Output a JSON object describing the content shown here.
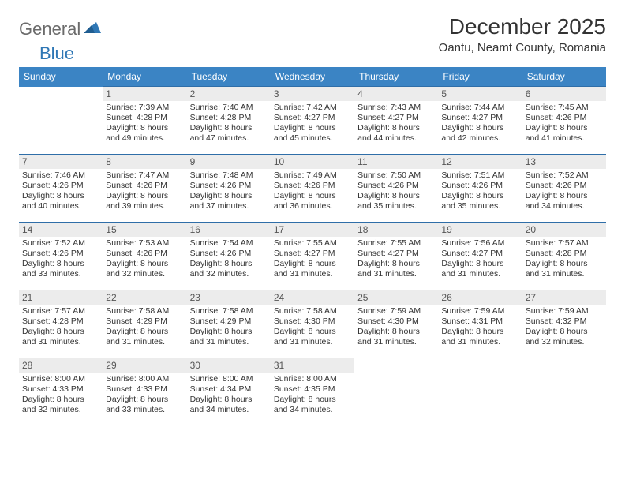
{
  "brand": {
    "part1": "General",
    "part2": "Blue"
  },
  "title": "December 2025",
  "location": "Oantu, Neamt County, Romania",
  "colors": {
    "header_bg": "#3b84c4",
    "header_text": "#ffffff",
    "daynum_bg": "#ececec",
    "row_border": "#2f6ea8",
    "brand_gray": "#6b6b6b",
    "brand_blue": "#2f77b5"
  },
  "day_headers": [
    "Sunday",
    "Monday",
    "Tuesday",
    "Wednesday",
    "Thursday",
    "Friday",
    "Saturday"
  ],
  "weeks": [
    [
      {
        "num": "",
        "sun": "",
        "set": "",
        "dl": ""
      },
      {
        "num": "1",
        "sun": "Sunrise: 7:39 AM",
        "set": "Sunset: 4:28 PM",
        "dl": "Daylight: 8 hours and 49 minutes."
      },
      {
        "num": "2",
        "sun": "Sunrise: 7:40 AM",
        "set": "Sunset: 4:28 PM",
        "dl": "Daylight: 8 hours and 47 minutes."
      },
      {
        "num": "3",
        "sun": "Sunrise: 7:42 AM",
        "set": "Sunset: 4:27 PM",
        "dl": "Daylight: 8 hours and 45 minutes."
      },
      {
        "num": "4",
        "sun": "Sunrise: 7:43 AM",
        "set": "Sunset: 4:27 PM",
        "dl": "Daylight: 8 hours and 44 minutes."
      },
      {
        "num": "5",
        "sun": "Sunrise: 7:44 AM",
        "set": "Sunset: 4:27 PM",
        "dl": "Daylight: 8 hours and 42 minutes."
      },
      {
        "num": "6",
        "sun": "Sunrise: 7:45 AM",
        "set": "Sunset: 4:26 PM",
        "dl": "Daylight: 8 hours and 41 minutes."
      }
    ],
    [
      {
        "num": "7",
        "sun": "Sunrise: 7:46 AM",
        "set": "Sunset: 4:26 PM",
        "dl": "Daylight: 8 hours and 40 minutes."
      },
      {
        "num": "8",
        "sun": "Sunrise: 7:47 AM",
        "set": "Sunset: 4:26 PM",
        "dl": "Daylight: 8 hours and 39 minutes."
      },
      {
        "num": "9",
        "sun": "Sunrise: 7:48 AM",
        "set": "Sunset: 4:26 PM",
        "dl": "Daylight: 8 hours and 37 minutes."
      },
      {
        "num": "10",
        "sun": "Sunrise: 7:49 AM",
        "set": "Sunset: 4:26 PM",
        "dl": "Daylight: 8 hours and 36 minutes."
      },
      {
        "num": "11",
        "sun": "Sunrise: 7:50 AM",
        "set": "Sunset: 4:26 PM",
        "dl": "Daylight: 8 hours and 35 minutes."
      },
      {
        "num": "12",
        "sun": "Sunrise: 7:51 AM",
        "set": "Sunset: 4:26 PM",
        "dl": "Daylight: 8 hours and 35 minutes."
      },
      {
        "num": "13",
        "sun": "Sunrise: 7:52 AM",
        "set": "Sunset: 4:26 PM",
        "dl": "Daylight: 8 hours and 34 minutes."
      }
    ],
    [
      {
        "num": "14",
        "sun": "Sunrise: 7:52 AM",
        "set": "Sunset: 4:26 PM",
        "dl": "Daylight: 8 hours and 33 minutes."
      },
      {
        "num": "15",
        "sun": "Sunrise: 7:53 AM",
        "set": "Sunset: 4:26 PM",
        "dl": "Daylight: 8 hours and 32 minutes."
      },
      {
        "num": "16",
        "sun": "Sunrise: 7:54 AM",
        "set": "Sunset: 4:26 PM",
        "dl": "Daylight: 8 hours and 32 minutes."
      },
      {
        "num": "17",
        "sun": "Sunrise: 7:55 AM",
        "set": "Sunset: 4:27 PM",
        "dl": "Daylight: 8 hours and 31 minutes."
      },
      {
        "num": "18",
        "sun": "Sunrise: 7:55 AM",
        "set": "Sunset: 4:27 PM",
        "dl": "Daylight: 8 hours and 31 minutes."
      },
      {
        "num": "19",
        "sun": "Sunrise: 7:56 AM",
        "set": "Sunset: 4:27 PM",
        "dl": "Daylight: 8 hours and 31 minutes."
      },
      {
        "num": "20",
        "sun": "Sunrise: 7:57 AM",
        "set": "Sunset: 4:28 PM",
        "dl": "Daylight: 8 hours and 31 minutes."
      }
    ],
    [
      {
        "num": "21",
        "sun": "Sunrise: 7:57 AM",
        "set": "Sunset: 4:28 PM",
        "dl": "Daylight: 8 hours and 31 minutes."
      },
      {
        "num": "22",
        "sun": "Sunrise: 7:58 AM",
        "set": "Sunset: 4:29 PM",
        "dl": "Daylight: 8 hours and 31 minutes."
      },
      {
        "num": "23",
        "sun": "Sunrise: 7:58 AM",
        "set": "Sunset: 4:29 PM",
        "dl": "Daylight: 8 hours and 31 minutes."
      },
      {
        "num": "24",
        "sun": "Sunrise: 7:58 AM",
        "set": "Sunset: 4:30 PM",
        "dl": "Daylight: 8 hours and 31 minutes."
      },
      {
        "num": "25",
        "sun": "Sunrise: 7:59 AM",
        "set": "Sunset: 4:30 PM",
        "dl": "Daylight: 8 hours and 31 minutes."
      },
      {
        "num": "26",
        "sun": "Sunrise: 7:59 AM",
        "set": "Sunset: 4:31 PM",
        "dl": "Daylight: 8 hours and 31 minutes."
      },
      {
        "num": "27",
        "sun": "Sunrise: 7:59 AM",
        "set": "Sunset: 4:32 PM",
        "dl": "Daylight: 8 hours and 32 minutes."
      }
    ],
    [
      {
        "num": "28",
        "sun": "Sunrise: 8:00 AM",
        "set": "Sunset: 4:33 PM",
        "dl": "Daylight: 8 hours and 32 minutes."
      },
      {
        "num": "29",
        "sun": "Sunrise: 8:00 AM",
        "set": "Sunset: 4:33 PM",
        "dl": "Daylight: 8 hours and 33 minutes."
      },
      {
        "num": "30",
        "sun": "Sunrise: 8:00 AM",
        "set": "Sunset: 4:34 PM",
        "dl": "Daylight: 8 hours and 34 minutes."
      },
      {
        "num": "31",
        "sun": "Sunrise: 8:00 AM",
        "set": "Sunset: 4:35 PM",
        "dl": "Daylight: 8 hours and 34 minutes."
      },
      {
        "num": "",
        "sun": "",
        "set": "",
        "dl": ""
      },
      {
        "num": "",
        "sun": "",
        "set": "",
        "dl": ""
      },
      {
        "num": "",
        "sun": "",
        "set": "",
        "dl": ""
      }
    ]
  ]
}
